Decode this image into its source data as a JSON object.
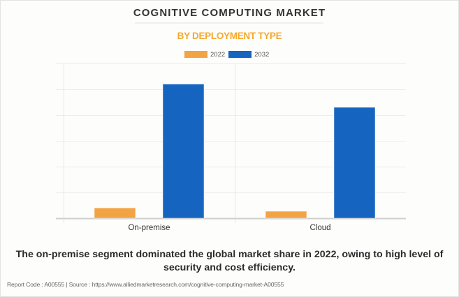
{
  "header": {
    "title": "COGNITIVE COMPUTING MARKET",
    "subtitle": "BY DEPLOYMENT TYPE"
  },
  "legend": [
    {
      "label": "2022",
      "color": "#f2a444"
    },
    {
      "label": "2032",
      "color": "#1565c0"
    }
  ],
  "caption": "The on-premise segment dominated the global market share in 2022, owing to high level of security and cost efficiency.",
  "footer": {
    "text": "Report Code : A00555  |  Source : https://www.alliedmarketresearch.com/cognitive-computing-market-A00555"
  },
  "chart_data": {
    "type": "bar",
    "title": "COGNITIVE COMPUTING MARKET",
    "subtitle": "BY DEPLOYMENT TYPE",
    "xlabel": "",
    "ylabel": "",
    "categories": [
      "On-premise",
      "Cloud"
    ],
    "series": [
      {
        "name": "2022",
        "color": "#f2a444",
        "values": [
          0.4,
          0.27
        ]
      },
      {
        "name": "2032",
        "color": "#1565c0",
        "values": [
          5.2,
          4.3
        ]
      }
    ],
    "ylim": [
      0,
      6
    ],
    "ytick_count": 6,
    "ytick_labels_visible": false,
    "grid": true,
    "legend_position": "top-center",
    "value_units": "relative (unlabeled axis, estimated in gridline units)"
  }
}
